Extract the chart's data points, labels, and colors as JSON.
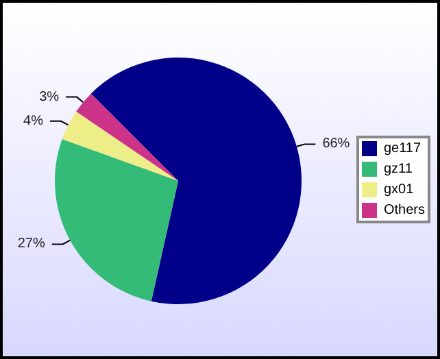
{
  "chart_data": {
    "type": "pie",
    "categories": [
      "ge117",
      "gz11",
      "gx01",
      "Others"
    ],
    "values": [
      66,
      27,
      4,
      3
    ],
    "colors": [
      "#000088",
      "#33bb77",
      "#eeee88",
      "#cc3388"
    ],
    "value_labels": [
      "66%",
      "27%",
      "4%",
      "3%"
    ],
    "legend": "right"
  }
}
